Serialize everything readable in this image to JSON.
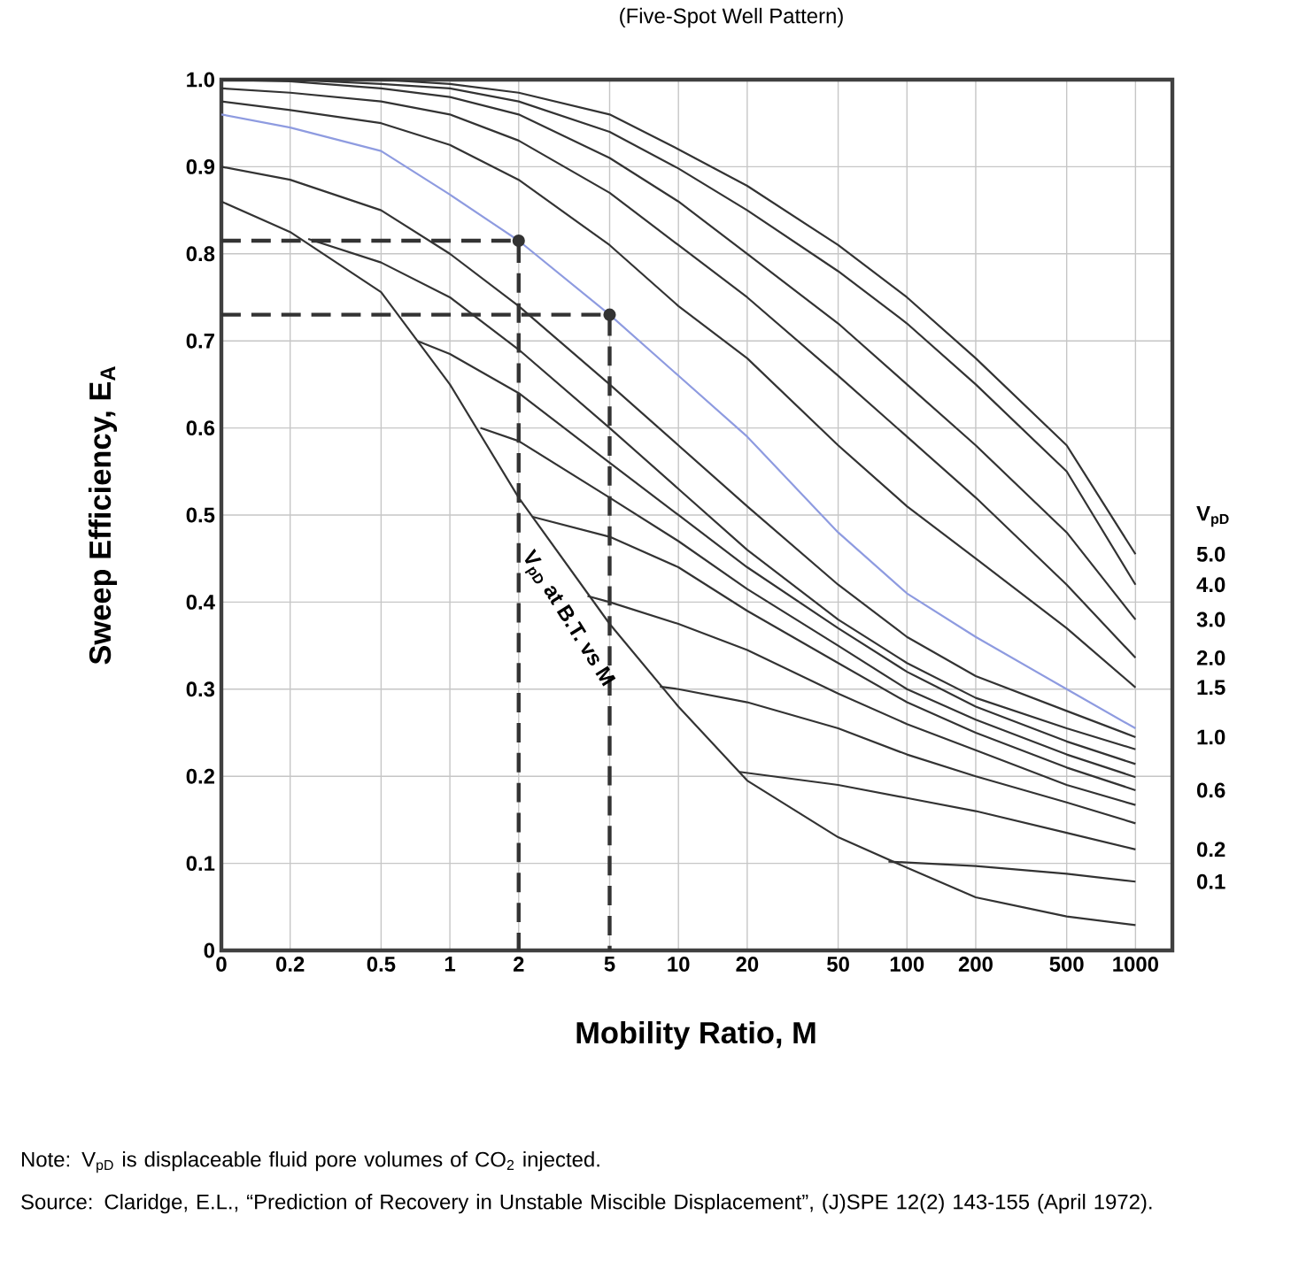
{
  "chart_data": {
    "type": "line",
    "title": "(Five-Spot Well Pattern)",
    "xlabel": "Mobility Ratio, M",
    "ylabel": "Sweep Efficiency, E$_{A}$",
    "legend_title": "V$_{pD}$",
    "log": "x",
    "grid": true,
    "xlim": [
      0.1,
      1450
    ],
    "ylim": [
      0,
      1.0
    ],
    "xticks": [
      {
        "value": 0.1,
        "label": "0"
      },
      0.2,
      0.5,
      1,
      2,
      5,
      10,
      20,
      50,
      100,
      200,
      500,
      1000
    ],
    "yticks": [
      0,
      0.1,
      0.2,
      0.3,
      0.4,
      0.5,
      0.6,
      0.7,
      0.8,
      0.9,
      {
        "value": 1.0,
        "label": "1.0"
      }
    ],
    "x": [
      0.1,
      0.2,
      0.5,
      1,
      2,
      5,
      10,
      20,
      50,
      100,
      200,
      500,
      1000
    ],
    "series": [
      {
        "color": "#333333",
        "values": [
          0.86,
          0.825,
          0.756,
          0.65,
          0.52,
          0.375,
          0.28,
          0.195,
          0.13,
          0.095,
          0.061,
          0.039,
          0.029
        ]
      },
      {
        "name": "0.1",
        "color": "#333333",
        "x": [
          83,
          100,
          200,
          500,
          1000
        ],
        "values": [
          0.102,
          0.101,
          0.097,
          0.088,
          0.079
        ]
      },
      {
        "name": "0.2",
        "color": "#333333",
        "x": [
          18.5,
          50,
          100,
          200,
          500,
          1000
        ],
        "values": [
          0.205,
          0.19,
          0.175,
          0.16,
          0.135,
          0.116
        ]
      },
      {
        "color": "#333333",
        "x": [
          8.3,
          10,
          20,
          50,
          100,
          200,
          500,
          1000
        ],
        "values": [
          0.303,
          0.3,
          0.285,
          0.255,
          0.225,
          0.2,
          0.17,
          0.146
        ]
      },
      {
        "color": "#333333",
        "x": [
          4,
          5,
          10,
          20,
          50,
          100,
          200,
          500,
          1000
        ],
        "values": [
          0.407,
          0.4,
          0.375,
          0.345,
          0.295,
          0.26,
          0.23,
          0.19,
          0.167
        ]
      },
      {
        "name": "0.6",
        "color": "#333333",
        "x": [
          2.3,
          5,
          10,
          20,
          50,
          100,
          200,
          500,
          1000
        ],
        "values": [
          0.498,
          0.475,
          0.44,
          0.39,
          0.33,
          0.285,
          0.25,
          0.21,
          0.184
        ]
      },
      {
        "color": "#333333",
        "x": [
          1.36,
          2,
          5,
          10,
          20,
          50,
          100,
          200,
          500,
          1000
        ],
        "values": [
          0.6,
          0.585,
          0.52,
          0.47,
          0.415,
          0.35,
          0.3,
          0.265,
          0.225,
          0.199
        ]
      },
      {
        "color": "#333333",
        "x": [
          0.72,
          1,
          2,
          5,
          10,
          20,
          50,
          100,
          200,
          500,
          1000
        ],
        "values": [
          0.7,
          0.685,
          0.64,
          0.56,
          0.5,
          0.44,
          0.37,
          0.32,
          0.28,
          0.24,
          0.214
        ]
      },
      {
        "color": "#333333",
        "x": [
          0.24,
          0.5,
          1,
          2,
          5,
          10,
          20,
          50,
          100,
          200,
          500,
          1000
        ],
        "values": [
          0.817,
          0.79,
          0.75,
          0.69,
          0.6,
          0.53,
          0.46,
          0.38,
          0.33,
          0.29,
          0.255,
          0.231
        ]
      },
      {
        "name": "1.0",
        "color": "#333333",
        "values": [
          0.9,
          0.885,
          0.85,
          0.8,
          0.74,
          0.65,
          0.58,
          0.51,
          0.42,
          0.36,
          0.315,
          0.275,
          0.245
        ]
      },
      {
        "name": "1.5",
        "color": "#333333",
        "values": [
          0.975,
          0.965,
          0.95,
          0.925,
          0.885,
          0.81,
          0.74,
          0.68,
          0.58,
          0.51,
          0.45,
          0.37,
          0.302
        ]
      },
      {
        "name": "2.0",
        "color": "#333333",
        "values": [
          0.99,
          0.985,
          0.975,
          0.96,
          0.93,
          0.87,
          0.81,
          0.75,
          0.66,
          0.59,
          0.52,
          0.42,
          0.336
        ]
      },
      {
        "name": "3.0",
        "color": "#333333",
        "values": [
          1.0,
          0.998,
          0.99,
          0.98,
          0.96,
          0.91,
          0.86,
          0.8,
          0.72,
          0.65,
          0.58,
          0.48,
          0.38
        ]
      },
      {
        "name": "4.0",
        "color": "#333333",
        "values": [
          1.0,
          1.0,
          0.995,
          0.99,
          0.975,
          0.94,
          0.898,
          0.85,
          0.78,
          0.72,
          0.65,
          0.55,
          0.42
        ]
      },
      {
        "name": "5.0",
        "color": "#333333",
        "values": [
          1.0,
          1.0,
          1.0,
          0.995,
          0.985,
          0.96,
          0.92,
          0.878,
          0.81,
          0.75,
          0.68,
          0.58,
          0.455
        ]
      },
      {
        "color": "#8e9be0",
        "values": [
          0.96,
          0.945,
          0.918,
          0.868,
          0.815,
          0.73,
          0.66,
          0.59,
          0.48,
          0.41,
          0.36,
          0.3,
          0.255
        ]
      },
      {
        "color": "#333333",
        "line_style": "dashed",
        "x": [
          0.1,
          2,
          2
        ],
        "values": [
          0.815,
          0.815,
          0
        ]
      },
      {
        "color": "#333333",
        "line_style": "dashed",
        "x": [
          0.1,
          5,
          5
        ],
        "values": [
          0.73,
          0.73,
          0
        ]
      },
      {
        "type": "scatter",
        "marker": "circle",
        "color": "#333333",
        "x": [
          2,
          5
        ],
        "values": [
          0.815,
          0.73
        ]
      }
    ],
    "annotations": [
      "V$_{pD}$ at B.T. vs M",
      "Note: V$_{pD}$ is displaceable fluid pore volumes of CO$_{2}$ injected.",
      "Source: Claridge, E.L., “Prediction of Recovery in Unstable Miscible  Displacement”, (J)SPE 12(2) 143-155 (April 1972)."
    ]
  }
}
